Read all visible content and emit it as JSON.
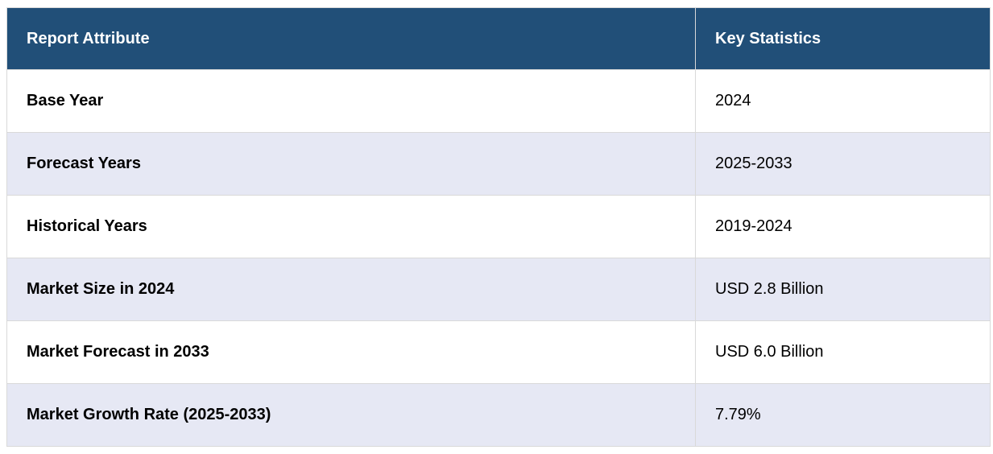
{
  "table": {
    "headers": [
      "Report Attribute",
      "Key Statistics"
    ],
    "rows": [
      {
        "attribute": "Base Year",
        "value": "2024"
      },
      {
        "attribute": "Forecast Years",
        "value": "2025-2033"
      },
      {
        "attribute": "Historical Years",
        "value": "2019-2024"
      },
      {
        "attribute": "Market Size in 2024",
        "value": "USD 2.8 Billion"
      },
      {
        "attribute": "Market Forecast in 2033",
        "value": "USD 6.0 Billion"
      },
      {
        "attribute": "Market Growth Rate (2025-2033)",
        "value": "7.79%"
      }
    ]
  },
  "colors": {
    "header_bg": "#214f78",
    "header_text": "#ffffff",
    "row_alt_bg": "#e6e8f4",
    "border": "#d9d9d9"
  }
}
